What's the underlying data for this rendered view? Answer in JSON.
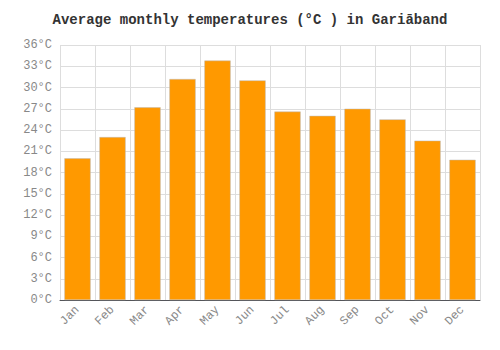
{
  "chart_data": {
    "type": "bar",
    "title": "Average monthly temperatures (°C ) in Gariāband",
    "categories": [
      "Jan",
      "Feb",
      "Mar",
      "Apr",
      "May",
      "Jun",
      "Jul",
      "Aug",
      "Sep",
      "Oct",
      "Nov",
      "Dec"
    ],
    "values": [
      20.0,
      23.0,
      27.2,
      31.2,
      33.8,
      31.0,
      26.6,
      26.0,
      27.0,
      25.5,
      22.5,
      19.8
    ],
    "color": "#FF9900",
    "ylim": [
      0,
      36
    ],
    "yticks": [
      {
        "value": 0,
        "label": "0°C"
      },
      {
        "value": 3,
        "label": "3°C"
      },
      {
        "value": 6,
        "label": "6°C"
      },
      {
        "value": 9,
        "label": "9°C"
      },
      {
        "value": 12,
        "label": "12°C"
      },
      {
        "value": 15,
        "label": "15°C"
      },
      {
        "value": 18,
        "label": "18°C"
      },
      {
        "value": 21,
        "label": "21°C"
      },
      {
        "value": 24,
        "label": "24°C"
      },
      {
        "value": 27,
        "label": "27°C"
      },
      {
        "value": 30,
        "label": "30°C"
      },
      {
        "value": 33,
        "label": "33°C"
      },
      {
        "value": 36,
        "label": "36°C"
      }
    ],
    "grid": true
  }
}
